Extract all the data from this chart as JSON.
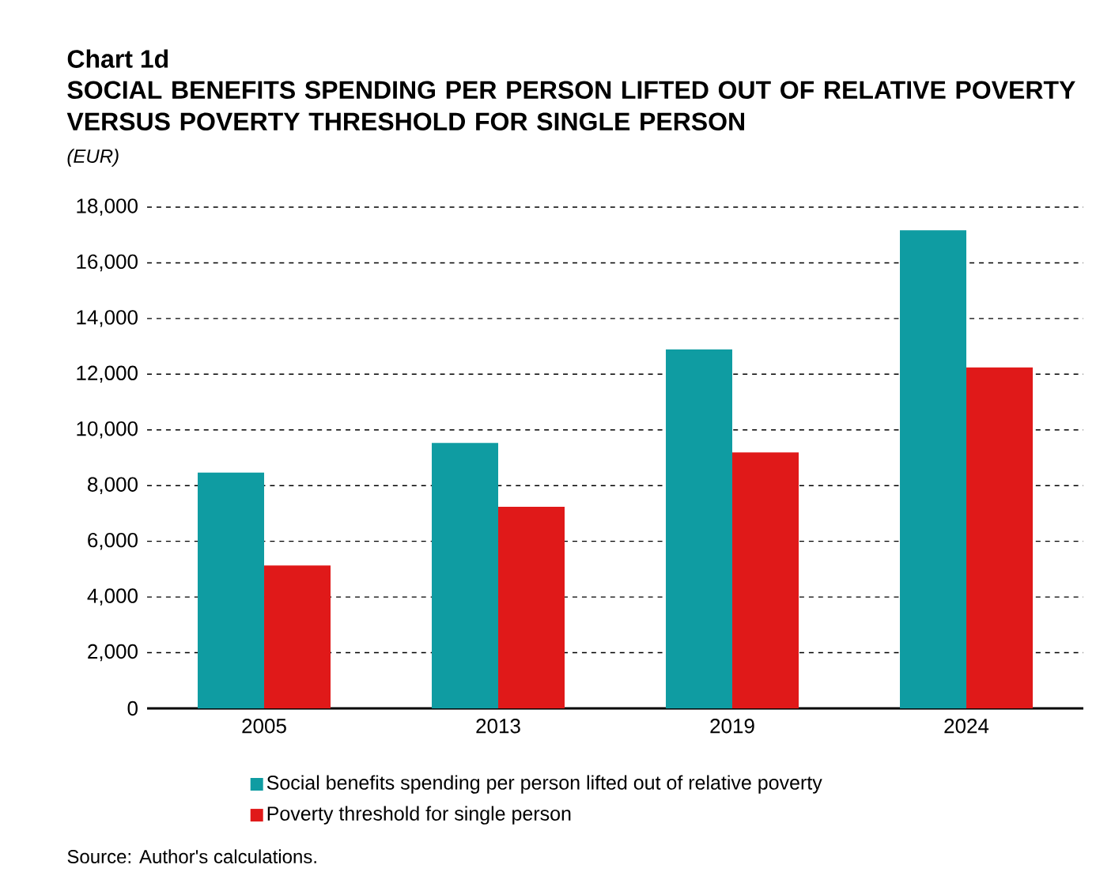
{
  "chart_data": {
    "type": "bar",
    "title": "Chart 1d",
    "subtitle": "SOCIAL BENEFITS SPENDING PER PERSON LIFTED OUT OF RELATIVE POVERTY VERSUS POVERTY THRESHOLD FOR SINGLE PERSON",
    "ylabel": "(EUR)",
    "categories": [
      "2005",
      "2013",
      "2019",
      "2024"
    ],
    "series": [
      {
        "name": "Social benefits spending per person lifted out of relative poverty",
        "color": "#0f9ca2",
        "values": [
          8470,
          9530,
          12890,
          17170
        ]
      },
      {
        "name": "Poverty threshold for single person",
        "color": "#e01919",
        "values": [
          5130,
          7240,
          9190,
          12240
        ]
      }
    ],
    "ylim": [
      0,
      18000
    ],
    "yticks": [
      {
        "value": 0,
        "label": "0"
      },
      {
        "value": 2000,
        "label": "2,000"
      },
      {
        "value": 4000,
        "label": "4,000"
      },
      {
        "value": 6000,
        "label": "6,000"
      },
      {
        "value": 8000,
        "label": "8,000"
      },
      {
        "value": 10000,
        "label": "10,000"
      },
      {
        "value": 12000,
        "label": "12,000"
      },
      {
        "value": 14000,
        "label": "14,000"
      },
      {
        "value": 16000,
        "label": "16,000"
      },
      {
        "value": 18000,
        "label": "18,000"
      }
    ],
    "grid": "y",
    "legend": "bottom",
    "annotations": [
      "Source: Author's calculations."
    ]
  }
}
